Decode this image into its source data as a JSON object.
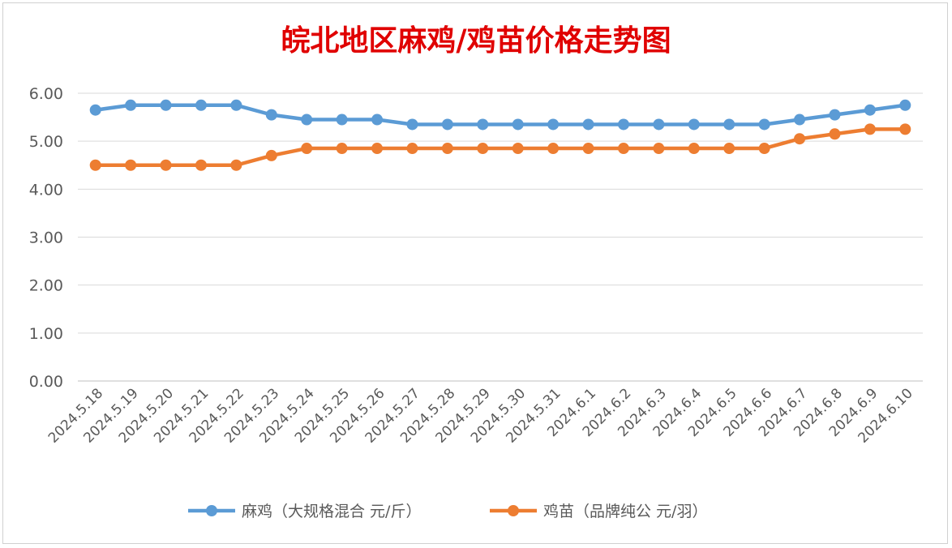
{
  "chart_data": {
    "type": "line",
    "title": "皖北地区麻鸡/鸡苗价格走势图",
    "xlabel": "",
    "ylabel": "",
    "categories": [
      "2024.5.18",
      "2024.5.19",
      "2024.5.20",
      "2024.5.21",
      "2024.5.22",
      "2024.5.23",
      "2024.5.24",
      "2024.5.25",
      "2024.5.26",
      "2024.5.27",
      "2024.5.28",
      "2024.5.29",
      "2024.5.30",
      "2024.5.31",
      "2024.6.1",
      "2024.6.2",
      "2024.6.3",
      "2024.6.4",
      "2024.6.5",
      "2024.6.6",
      "2024.6.7",
      "2024.6.8",
      "2024.6.9",
      "2024.6.10"
    ],
    "ylim": [
      0,
      6
    ],
    "yticks": [
      "0.00",
      "1.00",
      "2.00",
      "3.00",
      "4.00",
      "5.00",
      "6.00"
    ],
    "grid": true,
    "legend_position": "bottom",
    "series": [
      {
        "name": "麻鸡（大规格混合 元/斤）",
        "color": "#5b9bd5",
        "values": [
          5.65,
          5.75,
          5.75,
          5.75,
          5.75,
          5.55,
          5.45,
          5.45,
          5.45,
          5.35,
          5.35,
          5.35,
          5.35,
          5.35,
          5.35,
          5.35,
          5.35,
          5.35,
          5.35,
          5.35,
          5.45,
          5.55,
          5.65,
          5.75
        ]
      },
      {
        "name": "鸡苗（品牌纯公 元/羽）",
        "color": "#ed7d31",
        "values": [
          4.5,
          4.5,
          4.5,
          4.5,
          4.5,
          4.7,
          4.85,
          4.85,
          4.85,
          4.85,
          4.85,
          4.85,
          4.85,
          4.85,
          4.85,
          4.85,
          4.85,
          4.85,
          4.85,
          4.85,
          5.05,
          5.15,
          5.25,
          5.25
        ]
      }
    ]
  }
}
